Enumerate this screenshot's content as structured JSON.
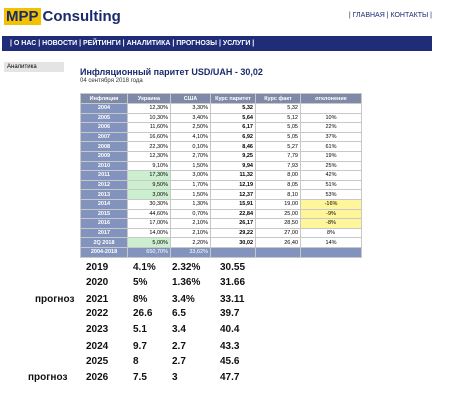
{
  "header": {
    "logo_mark": "MPP",
    "logo_text": "Consulting",
    "links": "| ГЛАВНАЯ | КОНТАКТЫ |"
  },
  "nav": "| О НАС | НОВОСТИ | РЕЙТИНГИ | АНАЛИТИКА | ПРОГНОЗЫ | УСЛУГИ |",
  "sidebar": "Аналитика",
  "article": {
    "title": "Инфляционный паритет USD/UAH - 30,02",
    "date": "04 сентября 2018 года"
  },
  "table": {
    "header": [
      "Инфляция",
      "Украина",
      "США",
      "Курс паритет",
      "Курс факт",
      "отклонение"
    ],
    "rows": [
      [
        "2004",
        "12,30%",
        "3,30%",
        "5,32",
        "5,32"
      ],
      [
        "2005",
        "10,30%",
        "3,40%",
        "5,64",
        "5,12",
        "10%"
      ],
      [
        "2006",
        "11,60%",
        "2,50%",
        "6,17",
        "5,05",
        "22%"
      ],
      [
        "2007",
        "16,60%",
        "4,10%",
        "6,92",
        "5,05",
        "37%"
      ],
      [
        "2008",
        "22,30%",
        "0,10%",
        "8,46",
        "5,27",
        "61%"
      ],
      [
        "2009",
        "12,30%",
        "2,70%",
        "9,25",
        "7,79",
        "19%"
      ],
      [
        "2010",
        "9,10%",
        "1,50%",
        "9,94",
        "7,93",
        "25%"
      ],
      [
        "2011",
        "17,30%",
        "3,00%",
        "11,32",
        "8,00",
        "42%"
      ],
      [
        "2012",
        "9,50%",
        "1,70%",
        "12,19",
        "8,05",
        "51%"
      ],
      [
        "2013",
        "3,00%",
        "1,50%",
        "12,37",
        "8,10",
        "53%"
      ],
      [
        "2014",
        "30,30%",
        "1,30%",
        "15,91",
        "19,00",
        "-16%"
      ],
      [
        "2015",
        "44,60%",
        "0,70%",
        "22,84",
        "25,00",
        "-9%"
      ],
      [
        "2016",
        "17,00%",
        "2,10%",
        "26,17",
        "28,50",
        "-8%"
      ],
      [
        "2017",
        "14,00%",
        "2,10%",
        "29,22",
        "27,00",
        "8%"
      ],
      [
        "2Q 2018",
        "5,00%",
        "2,20%",
        "30,02",
        "26,40",
        "14%"
      ],
      [
        "2004-2018",
        "650,70%",
        "33,62%"
      ]
    ]
  },
  "forecast": [
    {
      "cells": [
        "2019",
        "4.1%",
        "2.32%",
        "30.55"
      ]
    },
    {
      "cells": [
        "2020",
        "5%",
        "1.36%",
        "31.66"
      ]
    },
    {
      "label": "прогноз",
      "cells": [
        "2021",
        "8%",
        "3.4%",
        "33.11"
      ]
    },
    {
      "cells": [
        "2022",
        "26.6",
        "6.5",
        "39.7"
      ]
    },
    {
      "cells": [
        "2023",
        "5.1",
        "3.4",
        "40.4"
      ]
    },
    {
      "cells": [
        "2024",
        "9.7",
        "2.7",
        "43.3"
      ]
    },
    {
      "cells": [
        "2025",
        "8",
        "2.7",
        "45.6"
      ]
    },
    {
      "label": "прогноз",
      "cells": [
        "2026",
        "7.5",
        "3",
        "47.7"
      ]
    }
  ]
}
